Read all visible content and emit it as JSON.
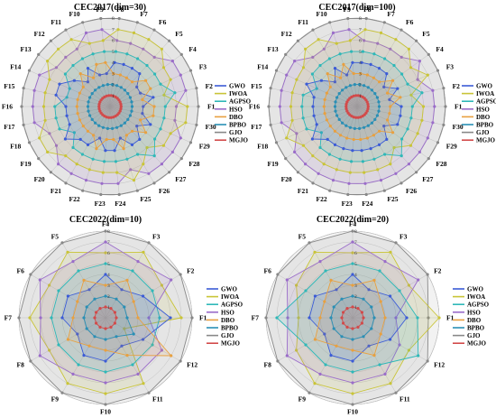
{
  "figure": {
    "charts": [
      {
        "title": "CEC2017(dim=30)",
        "categories": [
          "F1",
          "F2",
          "F3",
          "F4",
          "F5",
          "F6",
          "F7",
          "F8",
          "F9",
          "F10",
          "F11",
          "F12",
          "F13",
          "F14",
          "F15",
          "F16",
          "F17",
          "F18",
          "F19",
          "F20",
          "F21",
          "F22",
          "F23",
          "F24",
          "F25",
          "F26",
          "F27",
          "F28",
          "F29",
          "F30"
        ],
        "radial_ticks": [
          "0",
          "1",
          "2",
          "3",
          "4",
          "5",
          "6",
          "7",
          "8"
        ],
        "rmax": 8
      },
      {
        "title": "CEC2017(dim=100)",
        "categories": [
          "F1",
          "F2",
          "F3",
          "F4",
          "F5",
          "F6",
          "F7",
          "F8",
          "F9",
          "F10",
          "F11",
          "F12",
          "F13",
          "F14",
          "F15",
          "F16",
          "F17",
          "F18",
          "F19",
          "F20",
          "F21",
          "F22",
          "F23",
          "F24",
          "F25",
          "F26",
          "F27",
          "F28",
          "F29",
          "F30"
        ],
        "radial_ticks": [
          "0",
          "1",
          "2",
          "3",
          "4",
          "5",
          "6",
          "7",
          "8"
        ],
        "rmax": 8
      },
      {
        "title": "CEC2022(dim=10)",
        "categories": [
          "F1",
          "F2",
          "F3",
          "F4",
          "F5",
          "F6",
          "F7",
          "F8",
          "F9",
          "F10",
          "F11",
          "F12"
        ],
        "radial_ticks": [
          "0",
          "1",
          "2",
          "3",
          "4",
          "5",
          "6",
          "7",
          "8"
        ],
        "rmax": 8
      },
      {
        "title": "CEC2022(dim=20)",
        "categories": [
          "F1",
          "F2",
          "F3",
          "F4",
          "F5",
          "F6",
          "F7",
          "F8",
          "F9",
          "F10",
          "F11",
          "F12"
        ],
        "radial_ticks": [
          "0",
          "1",
          "2",
          "3",
          "4",
          "5",
          "6",
          "7",
          "8"
        ],
        "rmax": 8
      }
    ],
    "legend": [
      "GWO",
      "IWOA",
      "AGPSO",
      "HSO",
      "DBO",
      "BPBO",
      "GJO",
      "MGJO"
    ],
    "colors": {
      "GWO": "#3b5bd6",
      "IWOA": "#c9c437",
      "AGPSO": "#2fb8b8",
      "HSO": "#9a6cc9",
      "DBO": "#e8a040",
      "BPBO": "#2a8fb5",
      "GJO": "#888888",
      "MGJO": "#d24a4a"
    }
  },
  "chart_data": [
    {
      "type": "radar",
      "title": "CEC2017(dim=30)",
      "categories": [
        "F1",
        "F2",
        "F3",
        "F4",
        "F5",
        "F6",
        "F7",
        "F8",
        "F9",
        "F10",
        "F11",
        "F12",
        "F13",
        "F14",
        "F15",
        "F16",
        "F17",
        "F18",
        "F19",
        "F20",
        "F21",
        "F22",
        "F23",
        "F24",
        "F25",
        "F26",
        "F27",
        "F28",
        "F29",
        "F30"
      ],
      "rlim": [
        0,
        8
      ],
      "series": [
        {
          "name": "GWO",
          "values": [
            3,
            4,
            3,
            3,
            4,
            4,
            4,
            4,
            3,
            3,
            4,
            3,
            4,
            5,
            5,
            4,
            4,
            4,
            5,
            4,
            4,
            3,
            4,
            4,
            3,
            4,
            4,
            3,
            4,
            3
          ]
        },
        {
          "name": "IWOA",
          "values": [
            7,
            5,
            6,
            6,
            7,
            7,
            7,
            7,
            6,
            6,
            7,
            7,
            7,
            6,
            6,
            6,
            6,
            7,
            7,
            6,
            6,
            6,
            6,
            6,
            7,
            6,
            5,
            6,
            6,
            7
          ]
        },
        {
          "name": "AGPSO",
          "values": [
            5,
            6,
            5,
            5,
            5,
            5,
            5,
            5,
            5,
            5,
            5,
            5,
            5,
            4,
            4,
            5,
            5,
            5,
            4,
            5,
            5,
            5,
            5,
            5,
            5,
            5,
            6,
            5,
            5,
            5
          ]
        },
        {
          "name": "HSO",
          "values": [
            6,
            7,
            7,
            7,
            6,
            6,
            6,
            6,
            7,
            7,
            6,
            6,
            6,
            7,
            7,
            7,
            7,
            6,
            6,
            7,
            7,
            7,
            7,
            7,
            6,
            7,
            7,
            7,
            7,
            6
          ]
        },
        {
          "name": "DBO",
          "values": [
            4,
            3,
            4,
            4,
            3,
            3,
            3,
            3,
            4,
            4,
            3,
            4,
            3,
            3,
            3,
            3,
            3,
            3,
            3,
            3,
            3,
            4,
            3,
            3,
            4,
            3,
            3,
            4,
            3,
            4
          ]
        },
        {
          "name": "BPBO",
          "values": [
            2,
            2,
            2,
            2,
            2,
            2,
            2,
            2,
            2,
            2,
            2,
            2,
            2,
            2,
            2,
            2,
            2,
            2,
            2,
            2,
            2,
            2,
            2,
            2,
            2,
            2,
            2,
            2,
            2,
            2
          ]
        },
        {
          "name": "GJO",
          "values": [
            8,
            8,
            8,
            8,
            8,
            8,
            8,
            8,
            8,
            8,
            8,
            8,
            8,
            8,
            8,
            8,
            8,
            8,
            8,
            8,
            8,
            8,
            8,
            8,
            8,
            8,
            8,
            8,
            8,
            8
          ]
        },
        {
          "name": "MGJO",
          "values": [
            1,
            1,
            1,
            1,
            1,
            1,
            1,
            1,
            1,
            1,
            1,
            1,
            1,
            1,
            1,
            1,
            1,
            1,
            1,
            1,
            1,
            1,
            1,
            1,
            1,
            1,
            1,
            1,
            1,
            1
          ]
        }
      ]
    },
    {
      "type": "radar",
      "title": "CEC2017(dim=100)",
      "categories": [
        "F1",
        "F2",
        "F3",
        "F4",
        "F5",
        "F6",
        "F7",
        "F8",
        "F9",
        "F10",
        "F11",
        "F12",
        "F13",
        "F14",
        "F15",
        "F16",
        "F17",
        "F18",
        "F19",
        "F20",
        "F21",
        "F22",
        "F23",
        "F24",
        "F25",
        "F26",
        "F27",
        "F28",
        "F29",
        "F30"
      ],
      "rlim": [
        0,
        8
      ],
      "series": [
        {
          "name": "GWO",
          "values": [
            4,
            3,
            4,
            3,
            4,
            4,
            4,
            4,
            4,
            3,
            4,
            3,
            4,
            5,
            4,
            4,
            4,
            4,
            5,
            4,
            4,
            4,
            4,
            4,
            4,
            4,
            4,
            3,
            4,
            4
          ]
        },
        {
          "name": "IWOA",
          "values": [
            6,
            5,
            7,
            6,
            7,
            7,
            7,
            7,
            6,
            6,
            7,
            7,
            6,
            6,
            6,
            6,
            6,
            7,
            6,
            6,
            6,
            6,
            6,
            6,
            6,
            6,
            5,
            6,
            6,
            6
          ]
        },
        {
          "name": "AGPSO",
          "values": [
            5,
            6,
            5,
            5,
            5,
            5,
            5,
            5,
            5,
            5,
            5,
            5,
            5,
            4,
            5,
            5,
            5,
            5,
            4,
            5,
            5,
            5,
            5,
            5,
            5,
            5,
            6,
            5,
            5,
            5
          ]
        },
        {
          "name": "HSO",
          "values": [
            7,
            7,
            6,
            7,
            6,
            6,
            6,
            6,
            7,
            7,
            6,
            6,
            7,
            7,
            7,
            7,
            7,
            6,
            7,
            7,
            7,
            7,
            7,
            7,
            7,
            7,
            7,
            7,
            7,
            7
          ]
        },
        {
          "name": "DBO",
          "values": [
            3,
            4,
            3,
            4,
            3,
            3,
            3,
            3,
            3,
            4,
            3,
            4,
            3,
            3,
            3,
            3,
            3,
            3,
            3,
            3,
            3,
            3,
            3,
            3,
            3,
            3,
            3,
            4,
            3,
            3
          ]
        },
        {
          "name": "BPBO",
          "values": [
            2,
            2,
            2,
            2,
            2,
            2,
            2,
            2,
            2,
            2,
            2,
            2,
            2,
            2,
            2,
            2,
            2,
            2,
            2,
            2,
            2,
            2,
            2,
            2,
            2,
            2,
            2,
            2,
            2,
            2
          ]
        },
        {
          "name": "GJO",
          "values": [
            8,
            8,
            8,
            8,
            8,
            8,
            8,
            8,
            8,
            8,
            8,
            8,
            8,
            8,
            8,
            8,
            8,
            8,
            8,
            8,
            8,
            8,
            8,
            8,
            8,
            8,
            8,
            8,
            8,
            8
          ]
        },
        {
          "name": "MGJO",
          "values": [
            1,
            1,
            1,
            1,
            1,
            1,
            1,
            1,
            1,
            1,
            1,
            1,
            1,
            1,
            1,
            1,
            1,
            1,
            1,
            1,
            1,
            1,
            1,
            1,
            1,
            1,
            1,
            1,
            1,
            1
          ]
        }
      ]
    },
    {
      "type": "radar",
      "title": "CEC2022(dim=10)",
      "categories": [
        "F1",
        "F2",
        "F3",
        "F4",
        "F5",
        "F6",
        "F7",
        "F8",
        "F9",
        "F10",
        "F11",
        "F12"
      ],
      "rlim": [
        0,
        8
      ],
      "series": [
        {
          "name": "GWO",
          "values": [
            6,
            4,
            3,
            4,
            3,
            4,
            4,
            3,
            4,
            4,
            3,
            4
          ]
        },
        {
          "name": "IWOA",
          "values": [
            7,
            6,
            7,
            6,
            7,
            6,
            7,
            6,
            7,
            7,
            7,
            2
          ]
        },
        {
          "name": "AGPSO",
          "values": [
            5,
            5,
            5,
            5,
            5,
            5,
            5,
            5,
            5,
            5,
            5,
            5
          ]
        },
        {
          "name": "HSO",
          "values": [
            4,
            7,
            6,
            7,
            6,
            7,
            6,
            7,
            6,
            6,
            6,
            6
          ]
        },
        {
          "name": "DBO",
          "values": [
            3,
            3,
            4,
            3,
            4,
            3,
            3,
            4,
            3,
            3,
            4,
            7
          ]
        },
        {
          "name": "BPBO",
          "values": [
            2,
            2,
            2,
            2,
            2,
            2,
            2,
            2,
            2,
            2,
            2,
            3
          ]
        },
        {
          "name": "GJO",
          "values": [
            8,
            8,
            8,
            8,
            8,
            8,
            8,
            8,
            8,
            8,
            8,
            8
          ]
        },
        {
          "name": "MGJO",
          "values": [
            1,
            1,
            1,
            1,
            1,
            1,
            1,
            1,
            1,
            1,
            1,
            1
          ]
        }
      ]
    },
    {
      "type": "radar",
      "title": "CEC2022(dim=20)",
      "categories": [
        "F1",
        "F2",
        "F3",
        "F4",
        "F5",
        "F6",
        "F7",
        "F8",
        "F9",
        "F10",
        "F11",
        "F12"
      ],
      "rlim": [
        0,
        8
      ],
      "series": [
        {
          "name": "GWO",
          "values": [
            5,
            4,
            3,
            4,
            3,
            4,
            4,
            3,
            4,
            4,
            3,
            4
          ]
        },
        {
          "name": "IWOA",
          "values": [
            8,
            6,
            7,
            6,
            7,
            6,
            5,
            6,
            7,
            7,
            7,
            6
          ]
        },
        {
          "name": "AGPSO",
          "values": [
            6,
            5,
            5,
            5,
            5,
            5,
            7,
            5,
            5,
            5,
            5,
            7
          ]
        },
        {
          "name": "HSO",
          "values": [
            4,
            7,
            6,
            7,
            6,
            7,
            6,
            7,
            6,
            6,
            6,
            5
          ]
        },
        {
          "name": "DBO",
          "values": [
            3,
            3,
            4,
            3,
            4,
            3,
            3,
            4,
            3,
            3,
            4,
            3
          ]
        },
        {
          "name": "BPBO",
          "values": [
            2,
            2,
            2,
            2,
            2,
            2,
            2,
            2,
            2,
            2,
            2,
            2
          ]
        },
        {
          "name": "GJO",
          "values": [
            7,
            8,
            8,
            8,
            8,
            8,
            8,
            8,
            8,
            8,
            8,
            8
          ]
        },
        {
          "name": "MGJO",
          "values": [
            1,
            1,
            1,
            1,
            1,
            1,
            1,
            1,
            1,
            1,
            1,
            1
          ]
        }
      ]
    }
  ]
}
